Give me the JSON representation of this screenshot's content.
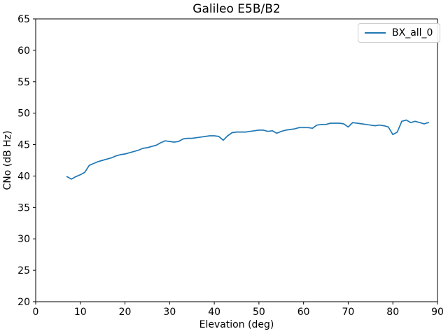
{
  "title": "Galileo E5B/B2",
  "chart_data": {
    "type": "line",
    "title": "Galileo E5B/B2",
    "xlabel": "Elevation (deg)",
    "ylabel": "CNo (dB Hz)",
    "xlim": [
      0,
      90
    ],
    "ylim": [
      20,
      65
    ],
    "x_ticks": [
      0,
      10,
      20,
      30,
      40,
      50,
      60,
      70,
      80,
      90
    ],
    "y_ticks": [
      20,
      25,
      30,
      35,
      40,
      45,
      50,
      55,
      60,
      65
    ],
    "grid": false,
    "legend_position": "upper right",
    "axis_color": "#000000",
    "series": [
      {
        "name": "BX_all_0",
        "color": "#1f77b4",
        "x": [
          7,
          8,
          9,
          10,
          11,
          12,
          13,
          14,
          15,
          16,
          17,
          18,
          19,
          20,
          21,
          22,
          23,
          24,
          25,
          26,
          27,
          28,
          29,
          30,
          31,
          32,
          33,
          34,
          35,
          36,
          37,
          38,
          39,
          40,
          41,
          42,
          43,
          44,
          45,
          46,
          47,
          48,
          49,
          50,
          51,
          52,
          53,
          54,
          55,
          56,
          57,
          58,
          59,
          60,
          61,
          62,
          63,
          64,
          65,
          66,
          67,
          68,
          69,
          70,
          71,
          72,
          73,
          74,
          75,
          76,
          77,
          78,
          79,
          80,
          81,
          82,
          83,
          84,
          85,
          86,
          87,
          88
        ],
        "y": [
          39.9,
          39.5,
          39.9,
          40.2,
          40.6,
          41.7,
          42.0,
          42.3,
          42.5,
          42.7,
          42.9,
          43.2,
          43.4,
          43.5,
          43.7,
          43.9,
          44.1,
          44.4,
          44.5,
          44.7,
          44.9,
          45.3,
          45.6,
          45.5,
          45.4,
          45.5,
          45.9,
          46.0,
          46.0,
          46.1,
          46.2,
          46.3,
          46.4,
          46.4,
          46.3,
          45.7,
          46.4,
          46.9,
          47.0,
          47.0,
          47.0,
          47.1,
          47.2,
          47.3,
          47.3,
          47.1,
          47.2,
          46.8,
          47.1,
          47.3,
          47.4,
          47.5,
          47.7,
          47.7,
          47.7,
          47.6,
          48.1,
          48.2,
          48.2,
          48.4,
          48.4,
          48.4,
          48.3,
          47.8,
          48.5,
          48.4,
          48.3,
          48.2,
          48.1,
          48.0,
          48.1,
          48.0,
          47.8,
          46.6,
          47.0,
          48.7,
          48.9,
          48.5,
          48.7,
          48.5,
          48.3,
          48.5
        ]
      }
    ]
  }
}
